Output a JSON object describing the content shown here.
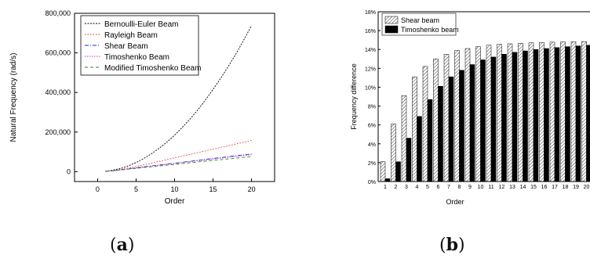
{
  "chart_data": [
    {
      "type": "line",
      "xlabel": "Order",
      "ylabel": "Natural Frequency (rad/s)",
      "xlim": [
        -3,
        23
      ],
      "ylim": [
        -50000,
        800000
      ],
      "xticks": [
        0,
        5,
        10,
        15,
        20
      ],
      "yticks": [
        0,
        200000,
        400000,
        600000,
        800000
      ],
      "ytick_labels": [
        "0",
        "200,000",
        "400,000",
        "600,000",
        "800,000"
      ],
      "grid": false,
      "legend": "top-left, boxed",
      "x": [
        1,
        2,
        3,
        4,
        5,
        6,
        7,
        8,
        9,
        10,
        11,
        12,
        13,
        14,
        15,
        16,
        17,
        18,
        19,
        20
      ],
      "series": [
        {
          "name": "Bernoulli-Euler Beam",
          "color": "#000000",
          "dash": "2,1.5",
          "values": [
            1800,
            7400,
            16600,
            29500,
            46100,
            66400,
            90400,
            118000,
            149000,
            184000,
            223000,
            265000,
            311000,
            361000,
            415000,
            472000,
            533000,
            597000,
            666000,
            738000
          ]
        },
        {
          "name": "Rayleigh Beam",
          "color": "#e8202a",
          "dash": "1.5,2",
          "values": [
            1500,
            5800,
            11600,
            18600,
            26400,
            34700,
            43300,
            52000,
            60800,
            69600,
            78400,
            87200,
            96000,
            104800,
            113600,
            122400,
            131200,
            140000,
            148800,
            157600
          ]
        },
        {
          "name": "Shear Beam",
          "color": "#2a2ad0",
          "dash": "5,2,1,2",
          "values": [
            1200,
            5000,
            9800,
            14600,
            19400,
            24200,
            29000,
            33700,
            38400,
            43100,
            47800,
            52500,
            57200,
            61900,
            66500,
            71100,
            75700,
            80300,
            84900,
            89500
          ]
        },
        {
          "name": "Timoshenko Beam",
          "color": "#cc33cc",
          "dash": "1.5,1.5",
          "values": [
            1100,
            4700,
            9300,
            13900,
            18500,
            23100,
            27600,
            32100,
            36600,
            41100,
            45600,
            50100,
            54600,
            59100,
            63500,
            67900,
            72300,
            76700,
            81100,
            85500
          ]
        },
        {
          "name": "Modified Timoshenko Beam",
          "color": "#2a8a2a",
          "dash": "4,3",
          "values": [
            1000,
            4300,
            8400,
            12500,
            16600,
            20700,
            24700,
            28700,
            32700,
            36700,
            40700,
            44700,
            48700,
            52700,
            56600,
            60500,
            64400,
            68300,
            72200,
            76100
          ]
        }
      ]
    },
    {
      "type": "bar",
      "xlabel": "Order",
      "ylabel": "Frequency difference",
      "ylim": [
        0,
        18
      ],
      "yticks": [
        0,
        2,
        4,
        6,
        8,
        10,
        12,
        14,
        16,
        18
      ],
      "ytick_labels": [
        "0%",
        "2%",
        "4%",
        "6%",
        "8%",
        "10%",
        "12%",
        "14%",
        "16%",
        "18%"
      ],
      "grid": false,
      "legend": "top-left, boxed",
      "categories": [
        "1",
        "2",
        "3",
        "4",
        "5",
        "6",
        "7",
        "8",
        "9",
        "10",
        "11",
        "12",
        "13",
        "14",
        "15",
        "16",
        "17",
        "18",
        "19",
        "20"
      ],
      "series": [
        {
          "name": "Shear beam",
          "fill": "hatch",
          "values": [
            2.1,
            6.1,
            9.1,
            11.1,
            12.2,
            13.0,
            13.5,
            13.9,
            14.1,
            14.3,
            14.45,
            14.55,
            14.6,
            14.65,
            14.7,
            14.75,
            14.78,
            14.8,
            14.82,
            14.84
          ]
        },
        {
          "name": "Timoshenko beam",
          "fill": "#000000",
          "values": [
            0.3,
            2.1,
            4.6,
            6.9,
            8.7,
            10.1,
            11.1,
            11.8,
            12.4,
            12.9,
            13.2,
            13.5,
            13.7,
            13.85,
            14.0,
            14.1,
            14.2,
            14.3,
            14.38,
            14.45
          ]
        }
      ]
    }
  ],
  "panels": {
    "a": "a",
    "b": "b"
  }
}
